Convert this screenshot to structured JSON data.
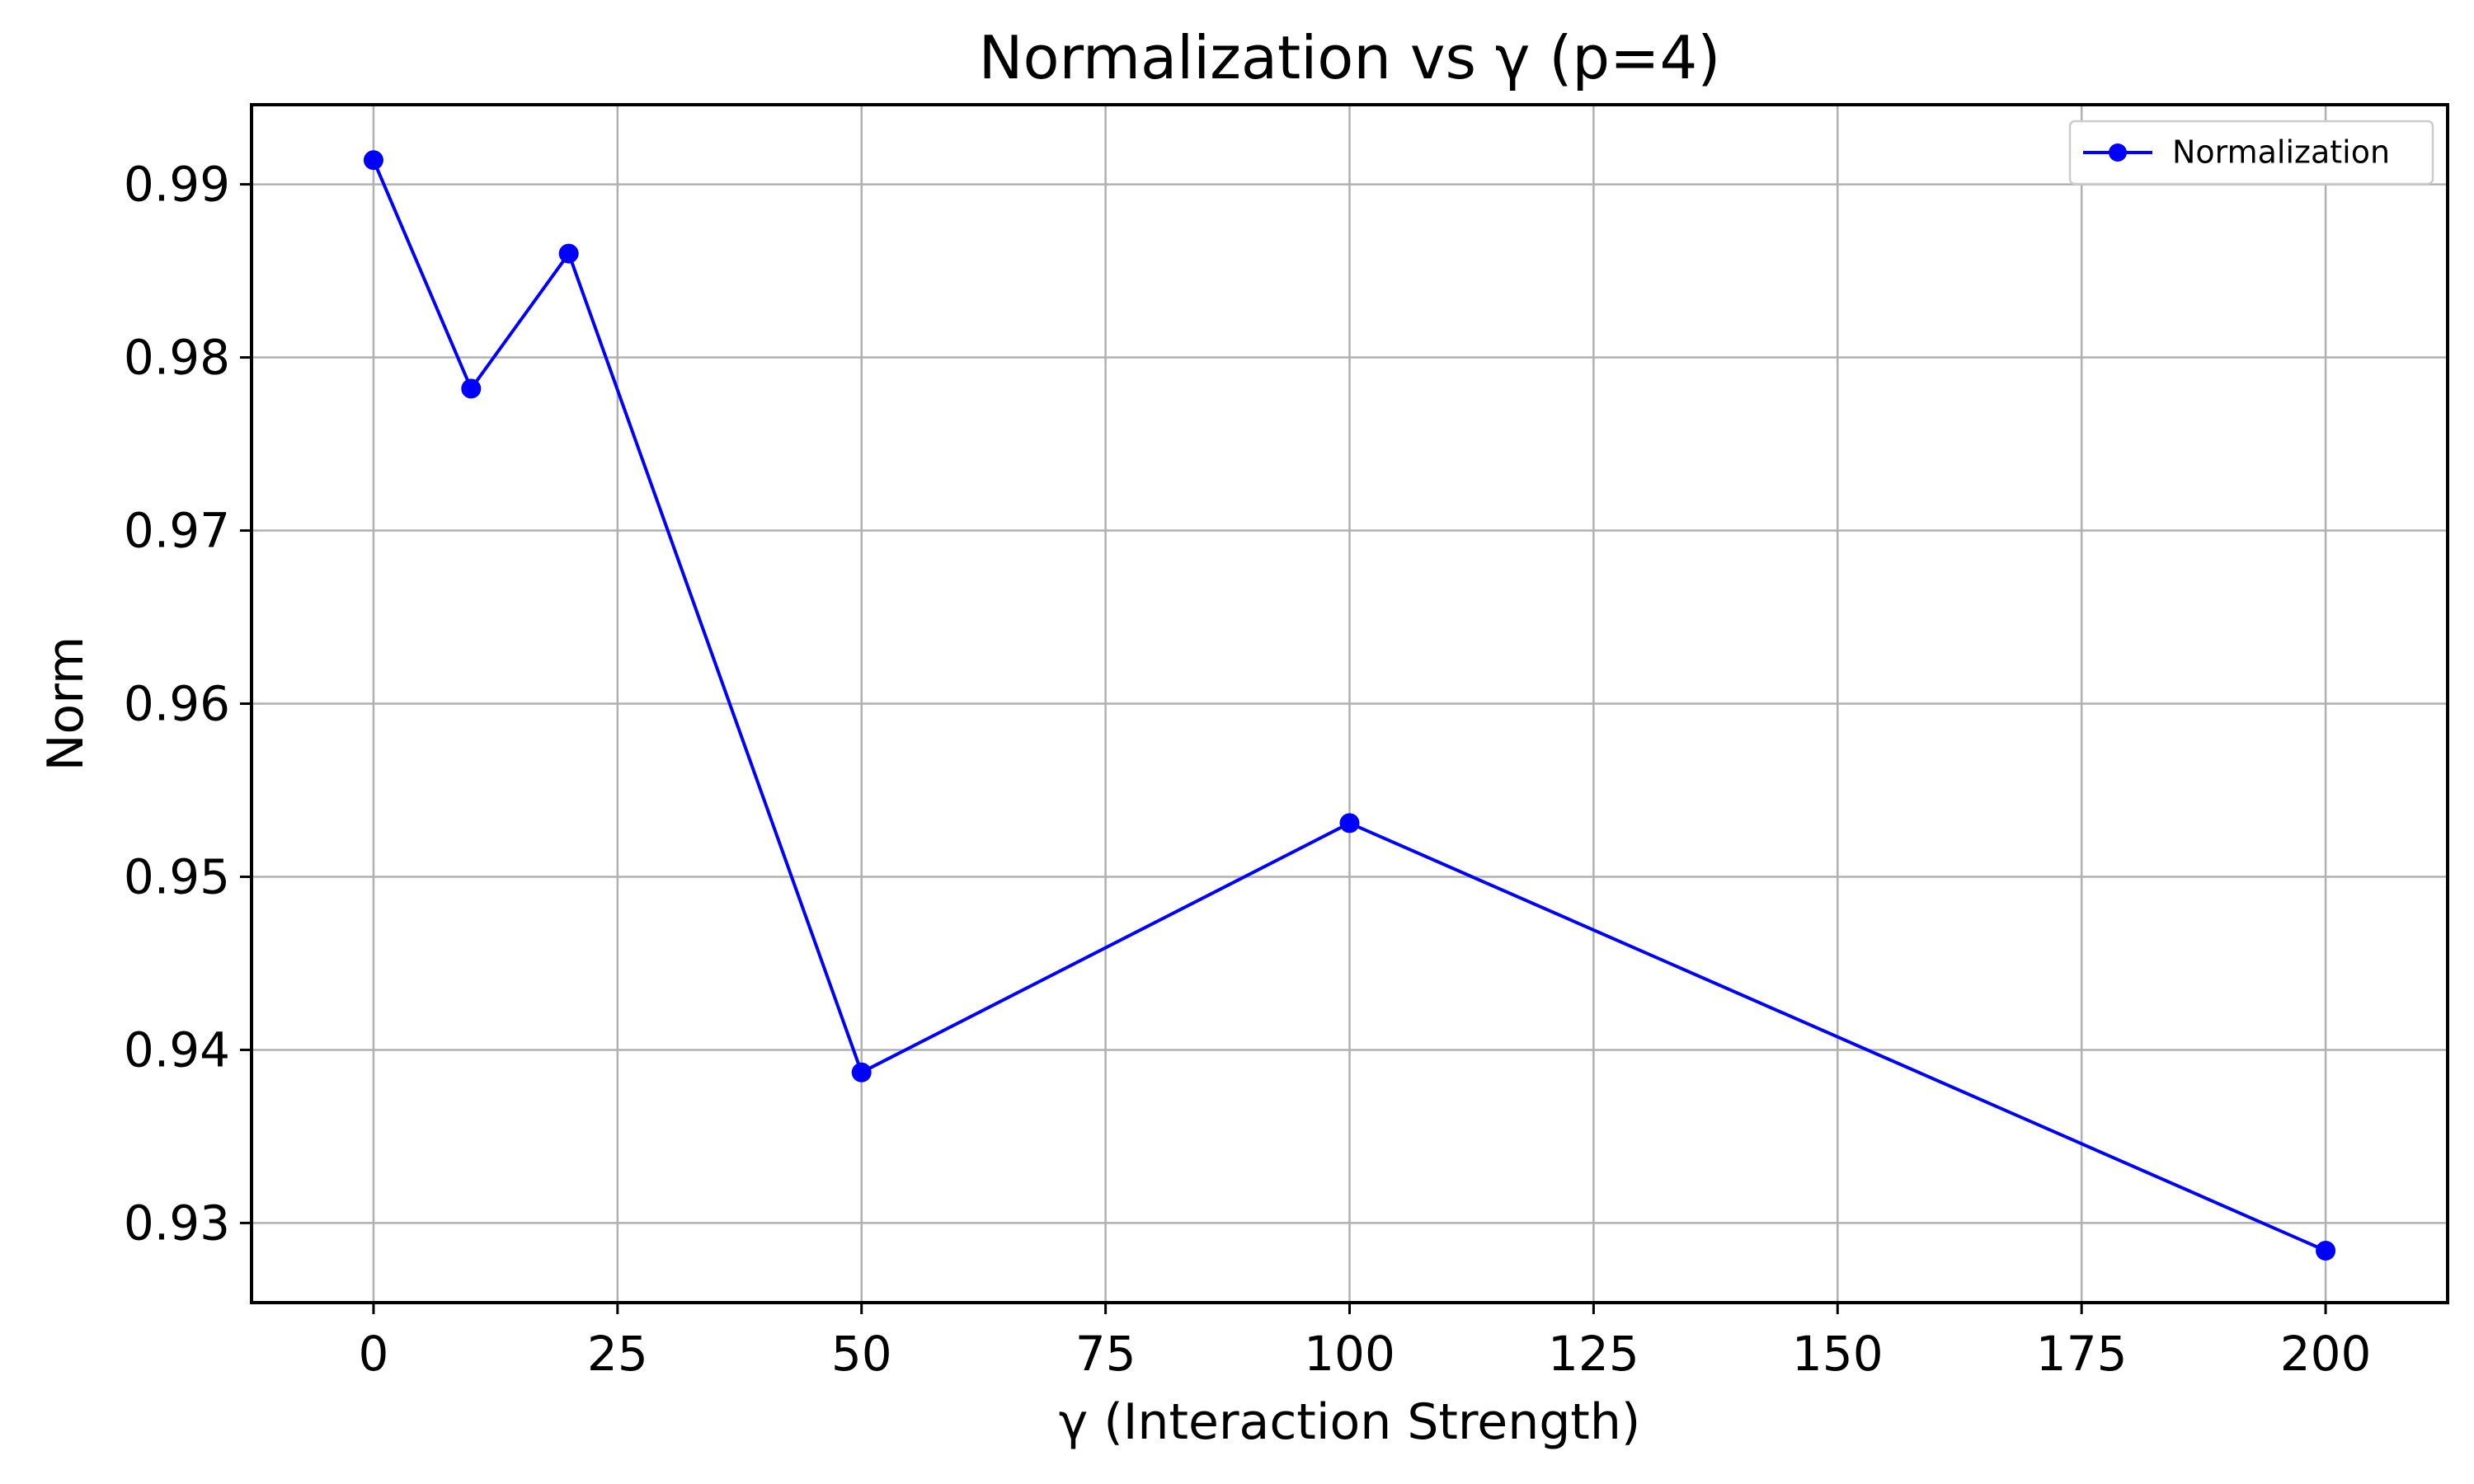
{
  "chart_data": {
    "type": "line",
    "title": "Normalization vs γ (p=4)",
    "xlabel": "γ (Interaction Strength)",
    "ylabel": "Norm",
    "xlim": [
      -12.5,
      212.5
    ],
    "ylim": [
      0.9254,
      0.9946
    ],
    "x_ticks": [
      0,
      25,
      50,
      75,
      100,
      125,
      150,
      175,
      200
    ],
    "y_ticks": [
      0.93,
      0.94,
      0.95,
      0.96,
      0.97,
      0.98,
      0.99
    ],
    "grid": true,
    "legend_position": "top-right",
    "series": [
      {
        "name": "Normalization",
        "color": "#0000ff",
        "marker": "circle",
        "x": [
          0,
          10,
          20,
          50,
          100,
          200
        ],
        "y": [
          0.9914,
          0.9782,
          0.986,
          0.9387,
          0.9531,
          0.9284
        ]
      }
    ]
  }
}
